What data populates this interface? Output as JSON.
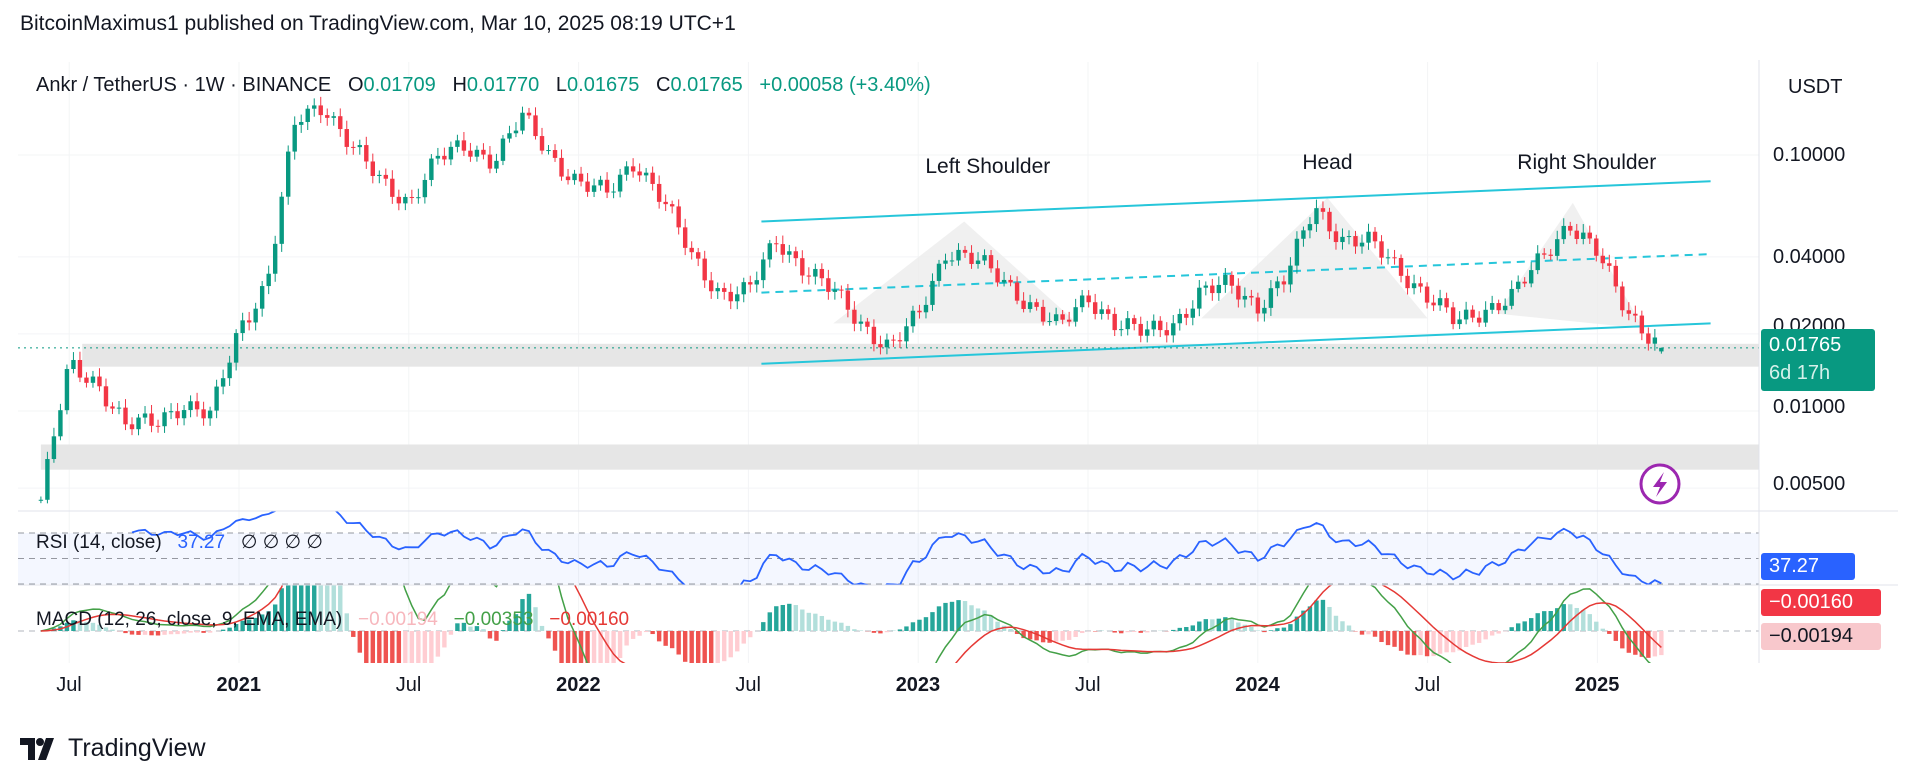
{
  "publisher_line": "BitcoinMaximus1 published on TradingView.com, Mar 10, 2025 08:19 UTC+1",
  "legend": {
    "symbol": "Ankr / TetherUS · 1W · BINANCE",
    "o_label": "O",
    "o": "0.01709",
    "h_label": "H",
    "h": "0.01770",
    "l_label": "L",
    "l": "0.01675",
    "c_label": "C",
    "c": "0.01765",
    "change": "+0.00058 (+3.40%)"
  },
  "rsi_legend": {
    "label": "RSI (14, close)",
    "value": "37.27",
    "extras": "∅ ∅ ∅ ∅"
  },
  "macd_legend": {
    "label": "MACD (12, 26, close, 9, EMA, EMA)",
    "hist": "−0.00194",
    "macd": "−0.00353",
    "signal": "−0.00160"
  },
  "price_axis": {
    "currency": "USDT",
    "ticks": [
      "0.10000",
      "0.04000",
      "0.02000",
      "0.01000",
      "0.00500"
    ],
    "last_price_tag": "0.01765",
    "countdown": "6d 17h",
    "rsi_tag": "37.27",
    "macd_signal_tag": "−0.00160",
    "macd_hist_tag": "−0.00194"
  },
  "brand": "TradingView",
  "colors": {
    "up": "#089981",
    "down": "#f23645",
    "trendline": "#26c6da",
    "rsi": "#2962ff",
    "macd": "#43a047",
    "signal": "#e53935",
    "alert": "#9c27b0"
  },
  "chart_data": {
    "type": "candlestick",
    "scale": "log",
    "interval": "1W",
    "ylim": [
      0.0045,
      0.16
    ],
    "y_ticks": [
      0.1,
      0.04,
      0.02,
      0.01,
      0.005
    ],
    "x_ticks": [
      {
        "label": "Jul",
        "date": "2020-07-01",
        "bold": false
      },
      {
        "label": "2021",
        "date": "2021-01-01",
        "bold": true
      },
      {
        "label": "Jul",
        "date": "2021-07-01",
        "bold": false
      },
      {
        "label": "2022",
        "date": "2022-01-01",
        "bold": true
      },
      {
        "label": "Jul",
        "date": "2022-07-01",
        "bold": false
      },
      {
        "label": "2023",
        "date": "2023-01-01",
        "bold": true
      },
      {
        "label": "Jul",
        "date": "2023-07-01",
        "bold": false
      },
      {
        "label": "2024",
        "date": "2024-01-01",
        "bold": true
      },
      {
        "label": "Jul",
        "date": "2024-07-01",
        "bold": false
      },
      {
        "label": "2025",
        "date": "2025-01-01",
        "bold": true
      }
    ],
    "price_path": [
      [
        "2020-06-01",
        0.0045
      ],
      [
        "2020-07-01",
        0.015
      ],
      [
        "2020-08-01",
        0.013
      ],
      [
        "2020-09-01",
        0.0087
      ],
      [
        "2020-10-01",
        0.009
      ],
      [
        "2020-11-01",
        0.0107
      ],
      [
        "2020-12-01",
        0.0095
      ],
      [
        "2021-01-01",
        0.021
      ],
      [
        "2021-02-01",
        0.032
      ],
      [
        "2021-03-01",
        0.135
      ],
      [
        "2021-04-01",
        0.158
      ],
      [
        "2021-05-01",
        0.108
      ],
      [
        "2021-06-01",
        0.078
      ],
      [
        "2021-07-01",
        0.066
      ],
      [
        "2021-08-01",
        0.096
      ],
      [
        "2021-09-01",
        0.108
      ],
      [
        "2021-10-01",
        0.096
      ],
      [
        "2021-11-01",
        0.14
      ],
      [
        "2021-12-01",
        0.1
      ],
      [
        "2022-01-01",
        0.078
      ],
      [
        "2022-02-01",
        0.07
      ],
      [
        "2022-03-01",
        0.096
      ],
      [
        "2022-04-01",
        0.066
      ],
      [
        "2022-05-01",
        0.04
      ],
      [
        "2022-06-01",
        0.029
      ],
      [
        "2022-07-01",
        0.029
      ],
      [
        "2022-08-01",
        0.047
      ],
      [
        "2022-09-01",
        0.036
      ],
      [
        "2022-10-01",
        0.029
      ],
      [
        "2022-11-01",
        0.022
      ],
      [
        "2022-12-01",
        0.0176
      ],
      [
        "2023-01-01",
        0.0233
      ],
      [
        "2023-02-01",
        0.043
      ],
      [
        "2023-03-01",
        0.039
      ],
      [
        "2023-04-01",
        0.032
      ],
      [
        "2023-05-01",
        0.026
      ],
      [
        "2023-06-01",
        0.021
      ],
      [
        "2023-07-01",
        0.028
      ],
      [
        "2023-08-01",
        0.022
      ],
      [
        "2023-09-01",
        0.02
      ],
      [
        "2023-10-01",
        0.022
      ],
      [
        "2023-11-01",
        0.029
      ],
      [
        "2023-12-01",
        0.031
      ],
      [
        "2024-01-01",
        0.026
      ],
      [
        "2024-02-01",
        0.033
      ],
      [
        "2024-03-01",
        0.063
      ],
      [
        "2024-04-01",
        0.047
      ],
      [
        "2024-05-01",
        0.045
      ],
      [
        "2024-06-01",
        0.036
      ],
      [
        "2024-07-01",
        0.028
      ],
      [
        "2024-08-01",
        0.022
      ],
      [
        "2024-09-01",
        0.025
      ],
      [
        "2024-10-01",
        0.028
      ],
      [
        "2024-11-01",
        0.039
      ],
      [
        "2024-12-01",
        0.055
      ],
      [
        "2025-01-01",
        0.041
      ],
      [
        "2025-02-01",
        0.025
      ],
      [
        "2025-03-10",
        0.01765
      ]
    ],
    "last_candle": {
      "open": 0.01709,
      "high": 0.0177,
      "low": 0.01675,
      "close": 0.01765
    },
    "annotations": {
      "labels": [
        {
          "text": "Left Shoulder",
          "date": "2023-03-15",
          "price": 0.085
        },
        {
          "text": "Head",
          "date": "2024-03-15",
          "price": 0.088
        },
        {
          "text": "Right Shoulder",
          "date": "2024-12-20",
          "price": 0.088
        }
      ],
      "channel_upper": [
        [
          "2022-07-15",
          0.055
        ],
        [
          "2025-05-01",
          0.079
        ]
      ],
      "channel_middle": [
        [
          "2022-07-15",
          0.029
        ],
        [
          "2025-05-01",
          0.041
        ]
      ],
      "channel_lower": [
        [
          "2022-07-15",
          0.0153
        ],
        [
          "2025-05-01",
          0.022
        ]
      ],
      "zones": [
        {
          "from": "2020-07-15",
          "top": 0.0183,
          "bottom": 0.0149
        },
        {
          "from": "2020-06-01",
          "top": 0.0074,
          "bottom": 0.0059
        }
      ],
      "shoulders": [
        [
          [
            "2022-10-01",
            0.022
          ],
          [
            "2023-02-20",
            0.055
          ],
          [
            "2023-06-20",
            0.022
          ]
        ],
        [
          [
            "2023-11-01",
            0.023
          ],
          [
            "2024-03-15",
            0.068
          ],
          [
            "2024-07-01",
            0.023
          ]
        ],
        [
          [
            "2024-09-15",
            0.024
          ],
          [
            "2024-12-05",
            0.065
          ],
          [
            "2025-02-20",
            0.021
          ]
        ]
      ]
    },
    "rsi": {
      "period": 14,
      "levels": [
        70,
        50,
        30
      ],
      "last": 37.27
    },
    "macd": {
      "fast": 12,
      "slow": 26,
      "signal": 9
    }
  }
}
